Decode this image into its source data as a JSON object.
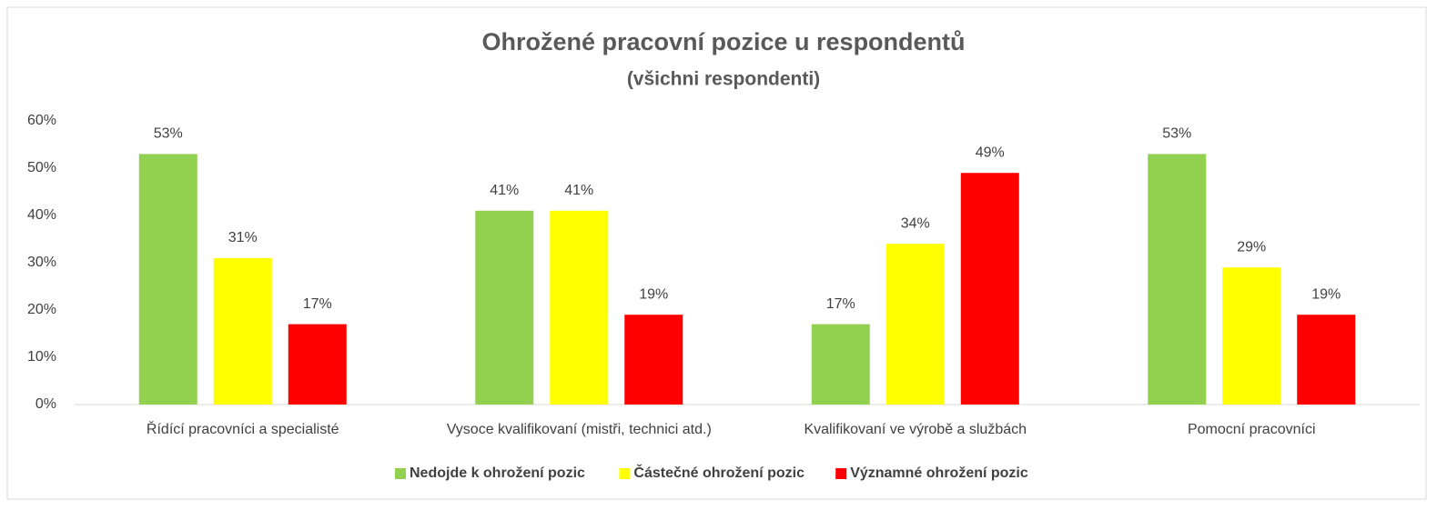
{
  "chart_data": {
    "type": "bar",
    "title": "Ohrožené pracovní pozice u respondentů",
    "subtitle": "(všichni respondenti)",
    "categories": [
      "Řídící pracovníci a specialisté",
      "Vysoce kvalifikovaní (mistři, technici atd.)",
      "Kvalifikovaní ve výrobě a službách",
      "Pomocní pracovníci"
    ],
    "series": [
      {
        "name": "Nedojde k ohrožení pozic",
        "color": "#92d050",
        "values": [
          53,
          41,
          17,
          53
        ],
        "value_labels": [
          "53%",
          "41%",
          "17%",
          "53%"
        ]
      },
      {
        "name": "Částečné ohrožení pozic",
        "color": "#ffff00",
        "values": [
          31,
          41,
          34,
          29
        ],
        "value_labels": [
          "31%",
          "41%",
          "34%",
          "29%"
        ]
      },
      {
        "name": "Významné ohrožení pozic",
        "color": "#ff0000",
        "values": [
          17,
          19,
          49,
          19
        ],
        "value_labels": [
          "17%",
          "19%",
          "49%",
          "19%"
        ]
      }
    ],
    "ylim": [
      0,
      60
    ],
    "yticks": [
      {
        "value": 0,
        "label": "0%"
      },
      {
        "value": 10,
        "label": "10%"
      },
      {
        "value": 20,
        "label": "20%"
      },
      {
        "value": 30,
        "label": "30%"
      },
      {
        "value": 40,
        "label": "40%"
      },
      {
        "value": 50,
        "label": "50%"
      },
      {
        "value": 60,
        "label": "60%"
      }
    ],
    "grid": false,
    "legend": "bottom"
  }
}
